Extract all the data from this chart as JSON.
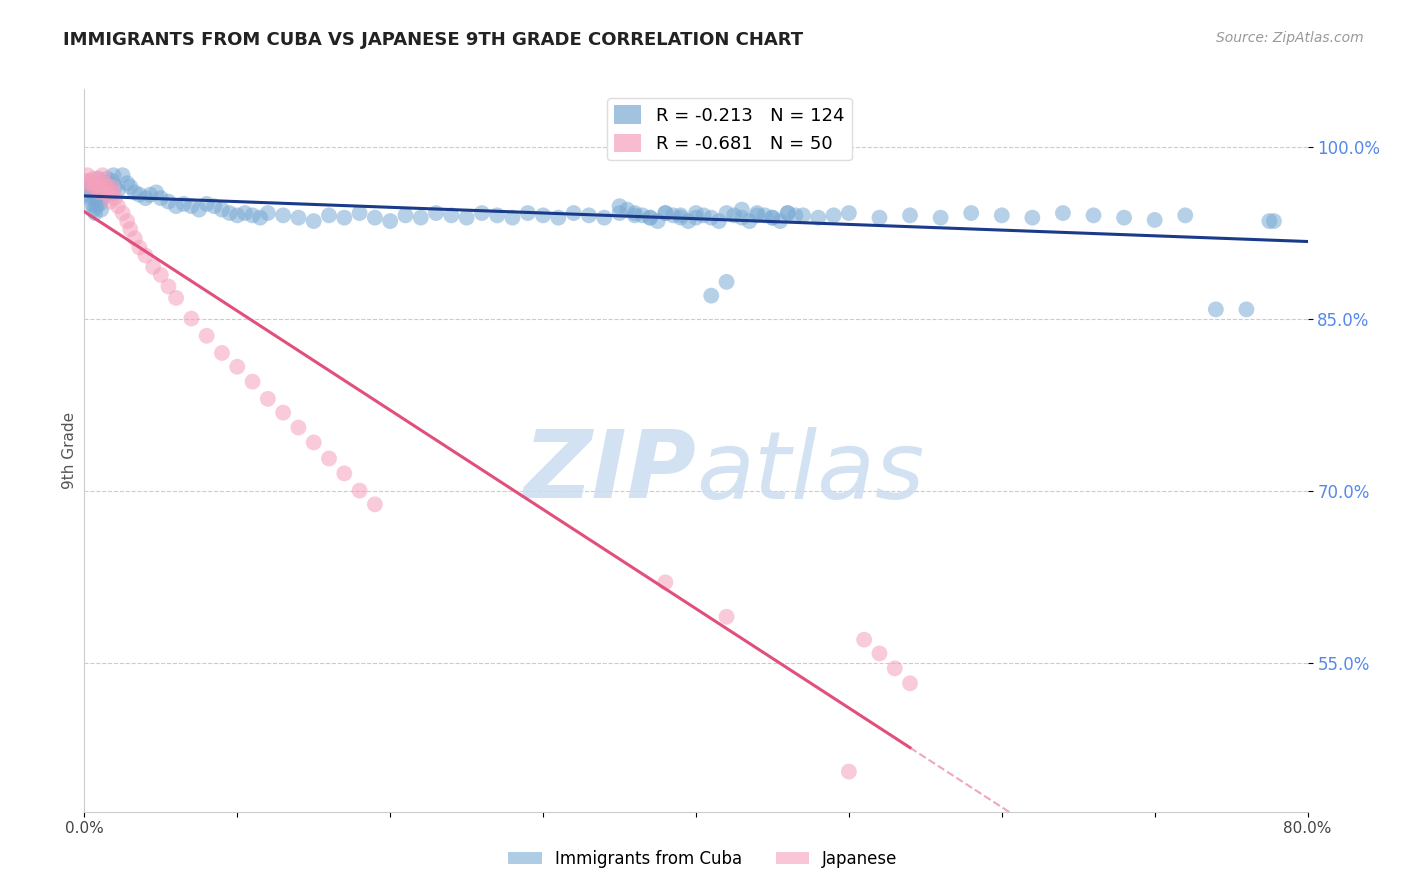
{
  "title": "IMMIGRANTS FROM CUBA VS JAPANESE 9TH GRADE CORRELATION CHART",
  "source": "Source: ZipAtlas.com",
  "ylabel_left": "9th Grade",
  "x_min": 0.0,
  "x_max": 0.8,
  "y_min": 0.42,
  "y_max": 1.05,
  "y_ticks": [
    1.0,
    0.85,
    0.7,
    0.55
  ],
  "y_tick_labels": [
    "100.0%",
    "85.0%",
    "70.0%",
    "55.0%"
  ],
  "x_ticks": [
    0.0,
    0.1,
    0.2,
    0.3,
    0.4,
    0.5,
    0.6,
    0.7,
    0.8
  ],
  "x_tick_labels": [
    "0.0%",
    "",
    "",
    "",
    "",
    "",
    "",
    "",
    "80.0%"
  ],
  "blue_R": -0.213,
  "blue_N": 124,
  "pink_R": -0.681,
  "pink_N": 50,
  "blue_color": "#7aaad4",
  "pink_color": "#f4a0bc",
  "blue_line_color": "#1a3a8a",
  "pink_line_color": "#e0507a",
  "background_color": "#ffffff",
  "watermark_color": "#ccddf0",
  "blue_scatter_x": [
    0.002,
    0.003,
    0.003,
    0.004,
    0.004,
    0.005,
    0.005,
    0.006,
    0.006,
    0.007,
    0.007,
    0.008,
    0.008,
    0.009,
    0.009,
    0.01,
    0.01,
    0.011,
    0.011,
    0.012,
    0.012,
    0.013,
    0.014,
    0.015,
    0.016,
    0.017,
    0.018,
    0.019,
    0.02,
    0.022,
    0.025,
    0.028,
    0.03,
    0.033,
    0.036,
    0.04,
    0.043,
    0.047,
    0.05,
    0.055,
    0.06,
    0.065,
    0.07,
    0.075,
    0.08,
    0.085,
    0.09,
    0.095,
    0.1,
    0.105,
    0.11,
    0.115,
    0.12,
    0.13,
    0.14,
    0.15,
    0.16,
    0.17,
    0.18,
    0.19,
    0.2,
    0.21,
    0.22,
    0.23,
    0.24,
    0.25,
    0.26,
    0.27,
    0.28,
    0.29,
    0.3,
    0.31,
    0.32,
    0.33,
    0.34,
    0.35,
    0.36,
    0.37,
    0.38,
    0.39,
    0.4,
    0.41,
    0.42,
    0.43,
    0.44,
    0.45,
    0.46,
    0.47,
    0.48,
    0.49,
    0.5,
    0.52,
    0.54,
    0.56,
    0.58,
    0.6,
    0.62,
    0.64,
    0.66,
    0.68,
    0.7,
    0.72,
    0.74,
    0.76,
    0.775,
    0.778,
    0.35,
    0.355,
    0.36,
    0.365,
    0.37,
    0.375,
    0.38,
    0.385,
    0.39,
    0.395,
    0.4,
    0.405,
    0.41,
    0.415,
    0.42,
    0.425,
    0.43,
    0.435,
    0.44,
    0.445,
    0.45,
    0.455,
    0.46,
    0.465
  ],
  "blue_scatter_y": [
    0.965,
    0.97,
    0.958,
    0.955,
    0.962,
    0.96,
    0.95,
    0.968,
    0.945,
    0.955,
    0.942,
    0.965,
    0.948,
    0.972,
    0.958,
    0.96,
    0.95,
    0.965,
    0.945,
    0.968,
    0.955,
    0.962,
    0.958,
    0.972,
    0.968,
    0.96,
    0.97,
    0.975,
    0.965,
    0.962,
    0.975,
    0.968,
    0.965,
    0.96,
    0.958,
    0.955,
    0.958,
    0.96,
    0.955,
    0.952,
    0.948,
    0.95,
    0.948,
    0.945,
    0.95,
    0.948,
    0.945,
    0.942,
    0.94,
    0.942,
    0.94,
    0.938,
    0.942,
    0.94,
    0.938,
    0.935,
    0.94,
    0.938,
    0.942,
    0.938,
    0.935,
    0.94,
    0.938,
    0.942,
    0.94,
    0.938,
    0.942,
    0.94,
    0.938,
    0.942,
    0.94,
    0.938,
    0.942,
    0.94,
    0.938,
    0.942,
    0.94,
    0.938,
    0.942,
    0.94,
    0.938,
    0.87,
    0.882,
    0.945,
    0.94,
    0.938,
    0.942,
    0.94,
    0.938,
    0.94,
    0.942,
    0.938,
    0.94,
    0.938,
    0.942,
    0.94,
    0.938,
    0.942,
    0.94,
    0.938,
    0.936,
    0.94,
    0.858,
    0.858,
    0.935,
    0.935,
    0.948,
    0.945,
    0.942,
    0.94,
    0.938,
    0.935,
    0.942,
    0.94,
    0.938,
    0.935,
    0.942,
    0.94,
    0.938,
    0.935,
    0.942,
    0.94,
    0.938,
    0.935,
    0.942,
    0.94,
    0.938,
    0.935,
    0.942,
    0.94
  ],
  "pink_scatter_x": [
    0.002,
    0.003,
    0.004,
    0.005,
    0.006,
    0.007,
    0.008,
    0.009,
    0.01,
    0.011,
    0.012,
    0.013,
    0.014,
    0.015,
    0.016,
    0.017,
    0.018,
    0.019,
    0.02,
    0.022,
    0.025,
    0.028,
    0.03,
    0.033,
    0.036,
    0.04,
    0.045,
    0.05,
    0.055,
    0.06,
    0.07,
    0.08,
    0.09,
    0.1,
    0.11,
    0.12,
    0.13,
    0.14,
    0.15,
    0.16,
    0.17,
    0.18,
    0.19,
    0.38,
    0.42,
    0.5,
    0.51,
    0.52,
    0.53,
    0.54
  ],
  "pink_scatter_y": [
    0.975,
    0.97,
    0.968,
    0.962,
    0.972,
    0.965,
    0.968,
    0.972,
    0.96,
    0.965,
    0.975,
    0.968,
    0.96,
    0.965,
    0.958,
    0.952,
    0.965,
    0.96,
    0.955,
    0.948,
    0.942,
    0.935,
    0.928,
    0.92,
    0.912,
    0.905,
    0.895,
    0.888,
    0.878,
    0.868,
    0.85,
    0.835,
    0.82,
    0.808,
    0.795,
    0.78,
    0.768,
    0.755,
    0.742,
    0.728,
    0.715,
    0.7,
    0.688,
    0.62,
    0.59,
    0.455,
    0.57,
    0.558,
    0.545,
    0.532
  ]
}
